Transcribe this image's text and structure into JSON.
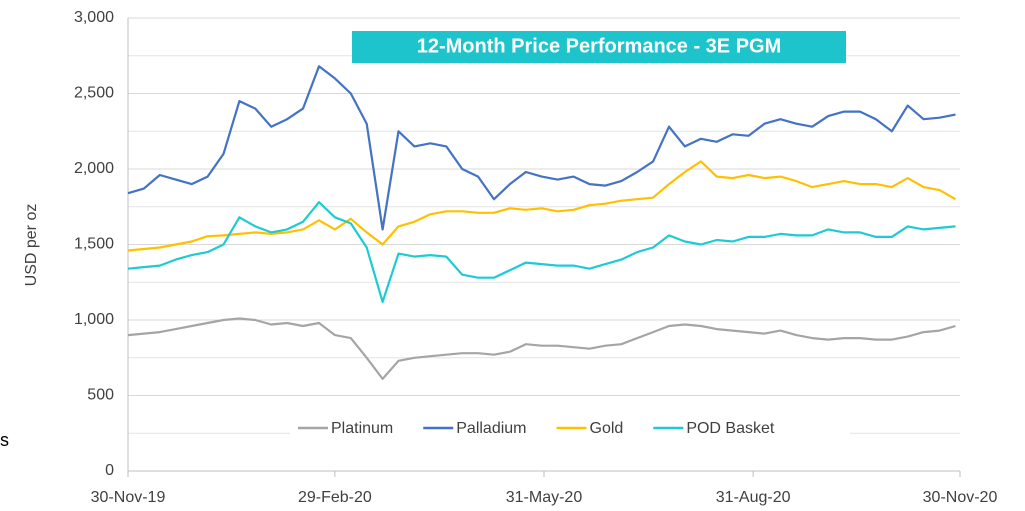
{
  "chart_data": {
    "type": "line",
    "title": "12-Month Price Performance - 3E PGM",
    "ylabel": "USD per oz",
    "side_text": "s",
    "x": [
      "2019-11-30",
      "2019-12-07",
      "2019-12-14",
      "2019-12-21",
      "2019-12-28",
      "2020-01-04",
      "2020-01-11",
      "2020-01-18",
      "2020-01-25",
      "2020-02-01",
      "2020-02-08",
      "2020-02-15",
      "2020-02-22",
      "2020-02-29",
      "2020-03-07",
      "2020-03-14",
      "2020-03-21",
      "2020-03-28",
      "2020-04-04",
      "2020-04-11",
      "2020-04-18",
      "2020-04-25",
      "2020-05-02",
      "2020-05-09",
      "2020-05-16",
      "2020-05-23",
      "2020-05-30",
      "2020-06-06",
      "2020-06-13",
      "2020-06-20",
      "2020-06-27",
      "2020-07-04",
      "2020-07-11",
      "2020-07-18",
      "2020-07-25",
      "2020-08-01",
      "2020-08-08",
      "2020-08-15",
      "2020-08-22",
      "2020-08-29",
      "2020-09-05",
      "2020-09-12",
      "2020-09-19",
      "2020-09-26",
      "2020-10-03",
      "2020-10-10",
      "2020-10-17",
      "2020-10-24",
      "2020-10-31",
      "2020-11-07",
      "2020-11-14",
      "2020-11-21",
      "2020-11-28"
    ],
    "series": [
      {
        "name": "Platinum",
        "color": "#a5a5a5",
        "values": [
          900,
          910,
          920,
          940,
          960,
          980,
          1000,
          1010,
          1000,
          970,
          980,
          960,
          980,
          900,
          880,
          750,
          610,
          730,
          750,
          760,
          770,
          780,
          780,
          770,
          790,
          840,
          830,
          830,
          820,
          810,
          830,
          840,
          880,
          920,
          960,
          970,
          960,
          940,
          930,
          920,
          910,
          930,
          900,
          880,
          870,
          880,
          880,
          870,
          870,
          890,
          920,
          930,
          960
        ]
      },
      {
        "name": "Palladium",
        "color": "#4472c4",
        "values": [
          1840,
          1870,
          1960,
          1930,
          1900,
          1950,
          2100,
          2450,
          2400,
          2280,
          2330,
          2400,
          2680,
          2600,
          2500,
          2300,
          1600,
          2250,
          2150,
          2170,
          2150,
          2000,
          1950,
          1800,
          1900,
          1980,
          1950,
          1930,
          1950,
          1900,
          1890,
          1920,
          1980,
          2050,
          2280,
          2150,
          2200,
          2180,
          2230,
          2220,
          2300,
          2330,
          2300,
          2280,
          2350,
          2380,
          2380,
          2330,
          2250,
          2420,
          2330,
          2340,
          2360
        ]
      },
      {
        "name": "Gold",
        "color": "#ffc000",
        "values": [
          1460,
          1470,
          1480,
          1500,
          1520,
          1555,
          1560,
          1570,
          1580,
          1570,
          1580,
          1600,
          1660,
          1600,
          1670,
          1580,
          1500,
          1620,
          1650,
          1700,
          1720,
          1720,
          1710,
          1710,
          1740,
          1730,
          1740,
          1720,
          1730,
          1760,
          1770,
          1790,
          1800,
          1810,
          1900,
          1980,
          2050,
          1950,
          1940,
          1960,
          1940,
          1950,
          1920,
          1880,
          1900,
          1920,
          1900,
          1900,
          1880,
          1940,
          1880,
          1860,
          1800
        ]
      },
      {
        "name": "POD Basket",
        "color": "#1ecbd2",
        "values": [
          1340,
          1350,
          1360,
          1400,
          1430,
          1450,
          1500,
          1680,
          1620,
          1580,
          1600,
          1650,
          1780,
          1680,
          1640,
          1480,
          1120,
          1440,
          1420,
          1430,
          1420,
          1300,
          1280,
          1280,
          1330,
          1380,
          1370,
          1360,
          1360,
          1340,
          1370,
          1400,
          1450,
          1480,
          1560,
          1520,
          1500,
          1530,
          1520,
          1550,
          1550,
          1570,
          1560,
          1560,
          1600,
          1580,
          1580,
          1550,
          1550,
          1620,
          1600,
          1610,
          1620
        ]
      }
    ],
    "xlim": [
      "2019-11-30",
      "2020-11-30"
    ],
    "xticks": [
      {
        "value": "2019-11-30",
        "label": "30-Nov-19"
      },
      {
        "value": "2020-02-29",
        "label": "29-Feb-20"
      },
      {
        "value": "2020-05-31",
        "label": "31-May-20"
      },
      {
        "value": "2020-08-31",
        "label": "31-Aug-20"
      },
      {
        "value": "2020-11-30",
        "label": "30-Nov-20"
      }
    ],
    "ylim": [
      0,
      3000
    ],
    "yticks": [
      0,
      500,
      {
        "value": 1000,
        "label": "1,000"
      },
      {
        "value": 1500,
        "label": "1,500"
      },
      {
        "value": 2000,
        "label": "2,000"
      },
      {
        "value": 2500,
        "label": "2,500"
      },
      {
        "value": 3000,
        "label": "3,000"
      }
    ],
    "minor_yticks": [
      250,
      750,
      1250,
      1750,
      2250,
      2750
    ],
    "grid": true,
    "legend": "bottom"
  }
}
